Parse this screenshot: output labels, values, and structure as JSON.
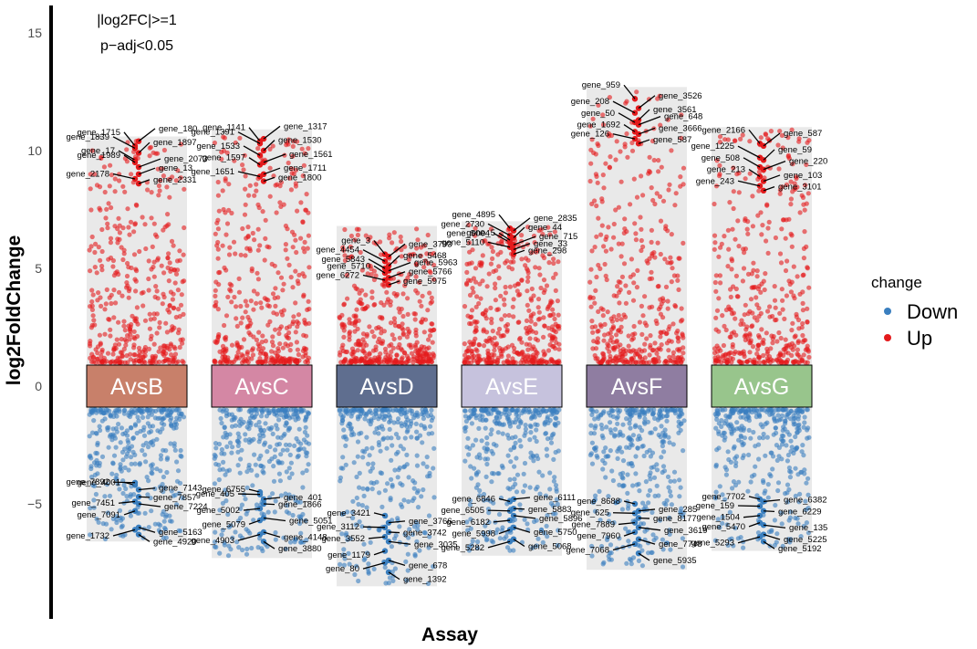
{
  "chart_data": {
    "type": "scatter",
    "xlabel": "Assay",
    "ylabel": "log2FoldChange",
    "ylim": [
      -8.5,
      15.5
    ],
    "yticks": [
      -5,
      0,
      5,
      10,
      15
    ],
    "annotations": [
      "|log2FC|>=1",
      "p−adj<0.05"
    ],
    "legend": {
      "title": "change",
      "position": "right",
      "items": [
        {
          "name": "Down",
          "color": "#3a7fbf"
        },
        {
          "name": "Up",
          "color": "#e41a1c"
        }
      ]
    },
    "groups": [
      {
        "name": "AvsB",
        "color": "#c8806a",
        "up_max": 10.6,
        "down_min": -6.6,
        "up_labels": [
          {
            "gene": "gene_1715",
            "y": 10.2
          },
          {
            "gene": "gene_180",
            "y": 10.4
          },
          {
            "gene": "gene_1839",
            "y": 10.1
          },
          {
            "gene": "gene_1897",
            "y": 9.9
          },
          {
            "gene": "gene_17",
            "y": 9.6
          },
          {
            "gene": "gene_2073",
            "y": 9.3
          },
          {
            "gene": "gene_1989",
            "y": 9.5
          },
          {
            "gene": "gene_13",
            "y": 9.0
          },
          {
            "gene": "gene_2178",
            "y": 8.8
          },
          {
            "gene": "gene_2331",
            "y": 8.6
          }
        ],
        "down_labels": [
          {
            "gene": "gene_4001",
            "y": -4.2
          },
          {
            "gene": "gene_7143",
            "y": -4.4
          },
          {
            "gene": "gene_7892",
            "y": -4.1
          },
          {
            "gene": "gene_7857",
            "y": -4.7
          },
          {
            "gene": "gene_7451",
            "y": -4.9
          },
          {
            "gene": "gene_7224",
            "y": -5.0
          },
          {
            "gene": "gene_7091",
            "y": -5.3
          },
          {
            "gene": "gene_5163",
            "y": -6.0
          },
          {
            "gene": "gene_1732",
            "y": -6.1
          },
          {
            "gene": "gene_4920",
            "y": -6.3
          }
        ]
      },
      {
        "name": "AvsC",
        "color": "#d487a4",
        "up_max": 10.9,
        "down_min": -7.3,
        "up_labels": [
          {
            "gene": "gene_1141",
            "y": 10.4
          },
          {
            "gene": "gene_1317",
            "y": 10.5
          },
          {
            "gene": "gene_1391",
            "y": 10.3
          },
          {
            "gene": "gene_1530",
            "y": 10.0
          },
          {
            "gene": "gene_1533",
            "y": 9.8
          },
          {
            "gene": "gene_1561",
            "y": 9.5
          },
          {
            "gene": "gene_1597",
            "y": 9.4
          },
          {
            "gene": "gene_1711",
            "y": 9.0
          },
          {
            "gene": "gene_1651",
            "y": 8.9
          },
          {
            "gene": "gene_1800",
            "y": 8.7
          }
        ],
        "down_labels": [
          {
            "gene": "gene_6755",
            "y": -4.5
          },
          {
            "gene": "gene_401",
            "y": -4.8
          },
          {
            "gene": "gene_405",
            "y": -4.6
          },
          {
            "gene": "gene_1866",
            "y": -5.0
          },
          {
            "gene": "gene_5002",
            "y": -5.2
          },
          {
            "gene": "gene_5051",
            "y": -5.6
          },
          {
            "gene": "gene_5079",
            "y": -5.7
          },
          {
            "gene": "gene_4148",
            "y": -6.2
          },
          {
            "gene": "gene_4903",
            "y": -6.3
          },
          {
            "gene": "gene_3880",
            "y": -6.6
          }
        ]
      },
      {
        "name": "AvsD",
        "color": "#5f6e8f",
        "up_max": 6.8,
        "down_min": -8.5,
        "up_labels": [
          {
            "gene": "gene_3",
            "y": 5.6
          },
          {
            "gene": "gene_3793",
            "y": 5.5
          },
          {
            "gene": "gene_4454",
            "y": 5.3
          },
          {
            "gene": "gene_5468",
            "y": 5.1
          },
          {
            "gene": "gene_5843",
            "y": 5.0
          },
          {
            "gene": "gene_5963",
            "y": 4.9
          },
          {
            "gene": "gene_5710",
            "y": 4.8
          },
          {
            "gene": "gene_5766",
            "y": 4.6
          },
          {
            "gene": "gene_6272",
            "y": 4.5
          },
          {
            "gene": "gene_5975",
            "y": 4.3
          }
        ],
        "down_labels": [
          {
            "gene": "gene_3421",
            "y": -5.5
          },
          {
            "gene": "gene_3766",
            "y": -5.8
          },
          {
            "gene": "gene_3112",
            "y": -6.0
          },
          {
            "gene": "gene_3742",
            "y": -6.2
          },
          {
            "gene": "gene_3552",
            "y": -6.4
          },
          {
            "gene": "gene_3035",
            "y": -6.6
          },
          {
            "gene": "gene_1179",
            "y": -7.0
          },
          {
            "gene": "gene_678",
            "y": -7.4
          },
          {
            "gene": "gene_80",
            "y": -7.5
          },
          {
            "gene": "gene_1392",
            "y": -7.9
          }
        ]
      },
      {
        "name": "AvsE",
        "color": "#c6c2dd",
        "up_max": 7.0,
        "down_min": -7.2,
        "up_labels": [
          {
            "gene": "gene_4895",
            "y": 6.7
          },
          {
            "gene": "gene_2835",
            "y": 6.6
          },
          {
            "gene": "gene_2730",
            "y": 6.4
          },
          {
            "gene": "gene_44",
            "y": 6.3
          },
          {
            "gene": "gene_5004",
            "y": 6.1
          },
          {
            "gene": "gene_715",
            "y": 6.0
          },
          {
            "gene": "gene_5",
            "y": 6.2
          },
          {
            "gene": "gene_33",
            "y": 5.8
          },
          {
            "gene": "gene_5110",
            "y": 5.9
          },
          {
            "gene": "gene_298",
            "y": 5.6
          }
        ],
        "down_labels": [
          {
            "gene": "gene_6846",
            "y": -4.9
          },
          {
            "gene": "gene_6111",
            "y": -4.8
          },
          {
            "gene": "gene_6505",
            "y": -5.3
          },
          {
            "gene": "gene_5883",
            "y": -5.2
          },
          {
            "gene": "gene_6182",
            "y": -5.7
          },
          {
            "gene": "gene_5896",
            "y": -5.5
          },
          {
            "gene": "gene_5998",
            "y": -6.1
          },
          {
            "gene": "gene_5750",
            "y": -6.0
          },
          {
            "gene": "gene_5282",
            "y": -6.6
          },
          {
            "gene": "gene_5068",
            "y": -6.5
          }
        ]
      },
      {
        "name": "AvsF",
        "color": "#8f7da1",
        "up_max": 12.7,
        "down_min": -7.8,
        "up_labels": [
          {
            "gene": "gene_959",
            "y": 12.2
          },
          {
            "gene": "gene_3526",
            "y": 11.8
          },
          {
            "gene": "gene_208",
            "y": 11.6
          },
          {
            "gene": "gene_3561",
            "y": 11.3
          },
          {
            "gene": "gene_50",
            "y": 11.2
          },
          {
            "gene": "gene_648",
            "y": 11.1
          },
          {
            "gene": "gene_1692",
            "y": 10.8
          },
          {
            "gene": "gene_3666",
            "y": 10.7
          },
          {
            "gene": "gene_126",
            "y": 10.5
          },
          {
            "gene": "gene_587",
            "y": 10.3
          }
        ],
        "down_labels": [
          {
            "gene": "gene_8688",
            "y": -5.0
          },
          {
            "gene": "gene_285",
            "y": -5.3
          },
          {
            "gene": "gene_625",
            "y": -5.4
          },
          {
            "gene": "gene_8177",
            "y": -5.6
          },
          {
            "gene": "gene_7889",
            "y": -5.8
          },
          {
            "gene": "gene_3619",
            "y": -6.0
          },
          {
            "gene": "gene_7960",
            "y": -6.2
          },
          {
            "gene": "gene_7748",
            "y": -6.5
          },
          {
            "gene": "gene_7068",
            "y": -6.7
          },
          {
            "gene": "gene_5935",
            "y": -7.1
          }
        ]
      },
      {
        "name": "AvsG",
        "color": "#98c58c",
        "up_max": 11.0,
        "down_min": -7.0,
        "up_labels": [
          {
            "gene": "gene_2166",
            "y": 10.3
          },
          {
            "gene": "gene_587",
            "y": 10.2
          },
          {
            "gene": "gene_1225",
            "y": 9.7
          },
          {
            "gene": "gene_59",
            "y": 9.6
          },
          {
            "gene": "gene_508",
            "y": 9.3
          },
          {
            "gene": "gene_220",
            "y": 9.2
          },
          {
            "gene": "gene_213",
            "y": 8.9
          },
          {
            "gene": "gene_103",
            "y": 8.7
          },
          {
            "gene": "gene_243",
            "y": 8.5
          },
          {
            "gene": "gene_3101",
            "y": 8.3
          }
        ],
        "down_labels": [
          {
            "gene": "gene_7702",
            "y": -4.8
          },
          {
            "gene": "gene_6382",
            "y": -4.9
          },
          {
            "gene": "gene_159",
            "y": -5.1
          },
          {
            "gene": "gene_6229",
            "y": -5.3
          },
          {
            "gene": "gene_1504",
            "y": -5.5
          },
          {
            "gene": "gene_135",
            "y": -5.9
          },
          {
            "gene": "gene_5470",
            "y": -5.8
          },
          {
            "gene": "gene_5225",
            "y": -6.3
          },
          {
            "gene": "gene_5293",
            "y": -6.4
          },
          {
            "gene": "gene_5192",
            "y": -6.6
          }
        ]
      }
    ]
  }
}
